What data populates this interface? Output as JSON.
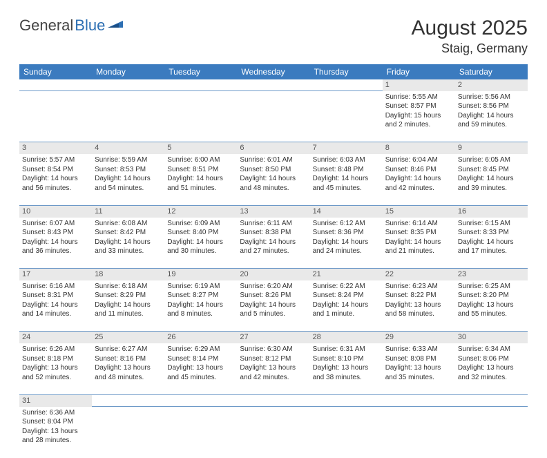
{
  "logo": {
    "part1": "General",
    "part2": "Blue"
  },
  "title": "August 2025",
  "location": "Staig, Germany",
  "colors": {
    "header_bg": "#3b7bbf",
    "header_text": "#ffffff",
    "daynum_bg": "#e9e9e9",
    "cell_border": "#6d99c8",
    "text": "#333333",
    "logo_blue": "#2d6fb3"
  },
  "weekdays": [
    "Sunday",
    "Monday",
    "Tuesday",
    "Wednesday",
    "Thursday",
    "Friday",
    "Saturday"
  ],
  "weeks": [
    {
      "days": [
        null,
        null,
        null,
        null,
        null,
        {
          "n": "1",
          "sunrise": "Sunrise: 5:55 AM",
          "sunset": "Sunset: 8:57 PM",
          "daylight": "Daylight: 15 hours and 2 minutes."
        },
        {
          "n": "2",
          "sunrise": "Sunrise: 5:56 AM",
          "sunset": "Sunset: 8:56 PM",
          "daylight": "Daylight: 14 hours and 59 minutes."
        }
      ]
    },
    {
      "days": [
        {
          "n": "3",
          "sunrise": "Sunrise: 5:57 AM",
          "sunset": "Sunset: 8:54 PM",
          "daylight": "Daylight: 14 hours and 56 minutes."
        },
        {
          "n": "4",
          "sunrise": "Sunrise: 5:59 AM",
          "sunset": "Sunset: 8:53 PM",
          "daylight": "Daylight: 14 hours and 54 minutes."
        },
        {
          "n": "5",
          "sunrise": "Sunrise: 6:00 AM",
          "sunset": "Sunset: 8:51 PM",
          "daylight": "Daylight: 14 hours and 51 minutes."
        },
        {
          "n": "6",
          "sunrise": "Sunrise: 6:01 AM",
          "sunset": "Sunset: 8:50 PM",
          "daylight": "Daylight: 14 hours and 48 minutes."
        },
        {
          "n": "7",
          "sunrise": "Sunrise: 6:03 AM",
          "sunset": "Sunset: 8:48 PM",
          "daylight": "Daylight: 14 hours and 45 minutes."
        },
        {
          "n": "8",
          "sunrise": "Sunrise: 6:04 AM",
          "sunset": "Sunset: 8:46 PM",
          "daylight": "Daylight: 14 hours and 42 minutes."
        },
        {
          "n": "9",
          "sunrise": "Sunrise: 6:05 AM",
          "sunset": "Sunset: 8:45 PM",
          "daylight": "Daylight: 14 hours and 39 minutes."
        }
      ]
    },
    {
      "days": [
        {
          "n": "10",
          "sunrise": "Sunrise: 6:07 AM",
          "sunset": "Sunset: 8:43 PM",
          "daylight": "Daylight: 14 hours and 36 minutes."
        },
        {
          "n": "11",
          "sunrise": "Sunrise: 6:08 AM",
          "sunset": "Sunset: 8:42 PM",
          "daylight": "Daylight: 14 hours and 33 minutes."
        },
        {
          "n": "12",
          "sunrise": "Sunrise: 6:09 AM",
          "sunset": "Sunset: 8:40 PM",
          "daylight": "Daylight: 14 hours and 30 minutes."
        },
        {
          "n": "13",
          "sunrise": "Sunrise: 6:11 AM",
          "sunset": "Sunset: 8:38 PM",
          "daylight": "Daylight: 14 hours and 27 minutes."
        },
        {
          "n": "14",
          "sunrise": "Sunrise: 6:12 AM",
          "sunset": "Sunset: 8:36 PM",
          "daylight": "Daylight: 14 hours and 24 minutes."
        },
        {
          "n": "15",
          "sunrise": "Sunrise: 6:14 AM",
          "sunset": "Sunset: 8:35 PM",
          "daylight": "Daylight: 14 hours and 21 minutes."
        },
        {
          "n": "16",
          "sunrise": "Sunrise: 6:15 AM",
          "sunset": "Sunset: 8:33 PM",
          "daylight": "Daylight: 14 hours and 17 minutes."
        }
      ]
    },
    {
      "days": [
        {
          "n": "17",
          "sunrise": "Sunrise: 6:16 AM",
          "sunset": "Sunset: 8:31 PM",
          "daylight": "Daylight: 14 hours and 14 minutes."
        },
        {
          "n": "18",
          "sunrise": "Sunrise: 6:18 AM",
          "sunset": "Sunset: 8:29 PM",
          "daylight": "Daylight: 14 hours and 11 minutes."
        },
        {
          "n": "19",
          "sunrise": "Sunrise: 6:19 AM",
          "sunset": "Sunset: 8:27 PM",
          "daylight": "Daylight: 14 hours and 8 minutes."
        },
        {
          "n": "20",
          "sunrise": "Sunrise: 6:20 AM",
          "sunset": "Sunset: 8:26 PM",
          "daylight": "Daylight: 14 hours and 5 minutes."
        },
        {
          "n": "21",
          "sunrise": "Sunrise: 6:22 AM",
          "sunset": "Sunset: 8:24 PM",
          "daylight": "Daylight: 14 hours and 1 minute."
        },
        {
          "n": "22",
          "sunrise": "Sunrise: 6:23 AM",
          "sunset": "Sunset: 8:22 PM",
          "daylight": "Daylight: 13 hours and 58 minutes."
        },
        {
          "n": "23",
          "sunrise": "Sunrise: 6:25 AM",
          "sunset": "Sunset: 8:20 PM",
          "daylight": "Daylight: 13 hours and 55 minutes."
        }
      ]
    },
    {
      "days": [
        {
          "n": "24",
          "sunrise": "Sunrise: 6:26 AM",
          "sunset": "Sunset: 8:18 PM",
          "daylight": "Daylight: 13 hours and 52 minutes."
        },
        {
          "n": "25",
          "sunrise": "Sunrise: 6:27 AM",
          "sunset": "Sunset: 8:16 PM",
          "daylight": "Daylight: 13 hours and 48 minutes."
        },
        {
          "n": "26",
          "sunrise": "Sunrise: 6:29 AM",
          "sunset": "Sunset: 8:14 PM",
          "daylight": "Daylight: 13 hours and 45 minutes."
        },
        {
          "n": "27",
          "sunrise": "Sunrise: 6:30 AM",
          "sunset": "Sunset: 8:12 PM",
          "daylight": "Daylight: 13 hours and 42 minutes."
        },
        {
          "n": "28",
          "sunrise": "Sunrise: 6:31 AM",
          "sunset": "Sunset: 8:10 PM",
          "daylight": "Daylight: 13 hours and 38 minutes."
        },
        {
          "n": "29",
          "sunrise": "Sunrise: 6:33 AM",
          "sunset": "Sunset: 8:08 PM",
          "daylight": "Daylight: 13 hours and 35 minutes."
        },
        {
          "n": "30",
          "sunrise": "Sunrise: 6:34 AM",
          "sunset": "Sunset: 8:06 PM",
          "daylight": "Daylight: 13 hours and 32 minutes."
        }
      ]
    },
    {
      "days": [
        {
          "n": "31",
          "sunrise": "Sunrise: 6:36 AM",
          "sunset": "Sunset: 8:04 PM",
          "daylight": "Daylight: 13 hours and 28 minutes."
        },
        null,
        null,
        null,
        null,
        null,
        null
      ]
    }
  ]
}
